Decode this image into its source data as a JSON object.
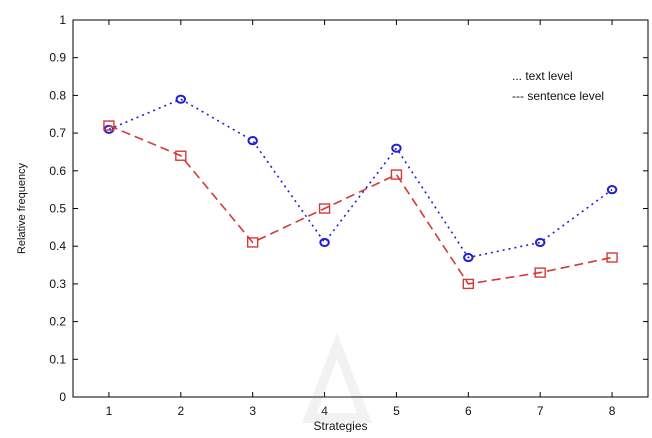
{
  "chart_data": {
    "type": "line",
    "title": "",
    "xlabel": "Strategies",
    "ylabel": "Relative frequency",
    "categories": [
      1,
      2,
      3,
      4,
      5,
      6,
      7,
      8
    ],
    "xlim": [
      0.5,
      8.5
    ],
    "ylim": [
      0,
      1
    ],
    "yticks": [
      0,
      0.1,
      0.2,
      0.3,
      0.4,
      0.5,
      0.6,
      0.7,
      0.8,
      0.9,
      1
    ],
    "ytick_labels": [
      "0",
      "0.1",
      "0.2",
      "0.3",
      "0.4",
      "0.5",
      "0.6",
      "0.7",
      "0.8",
      "0.9",
      "1"
    ],
    "xtick_labels": [
      "1",
      "2",
      "3",
      "4",
      "5",
      "6",
      "7",
      "8"
    ],
    "grid": false,
    "legend_position": "top-right",
    "series": [
      {
        "name": "text level",
        "style": "dotted",
        "marker": "circle",
        "color": "#1f1fd6",
        "values": [
          0.71,
          0.79,
          0.68,
          0.41,
          0.66,
          0.37,
          0.41,
          0.55
        ]
      },
      {
        "name": "sentence level",
        "style": "dashed",
        "marker": "square",
        "color": "#d23a3a",
        "values": [
          0.72,
          0.64,
          0.41,
          0.5,
          0.59,
          0.3,
          0.33,
          0.37
        ]
      }
    ],
    "legend_labels": [
      "... text level",
      "--- sentence level"
    ]
  }
}
